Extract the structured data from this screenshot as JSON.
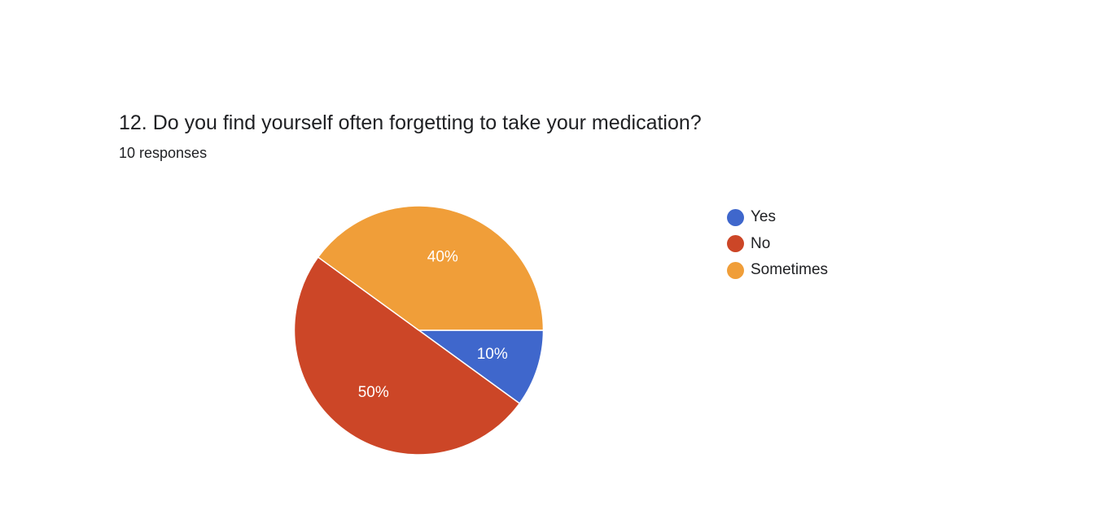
{
  "question": {
    "title": "12. Do you find yourself often forgetting to take your medication?",
    "responses_label": "10 responses"
  },
  "chart_data": {
    "type": "pie",
    "categories": [
      "Yes",
      "No",
      "Sometimes"
    ],
    "values": [
      10,
      50,
      40
    ],
    "value_labels": [
      "10%",
      "50%",
      "40%"
    ],
    "colors": [
      "#3f67cc",
      "#cc4627",
      "#f09e39"
    ],
    "legend_position": "right"
  }
}
